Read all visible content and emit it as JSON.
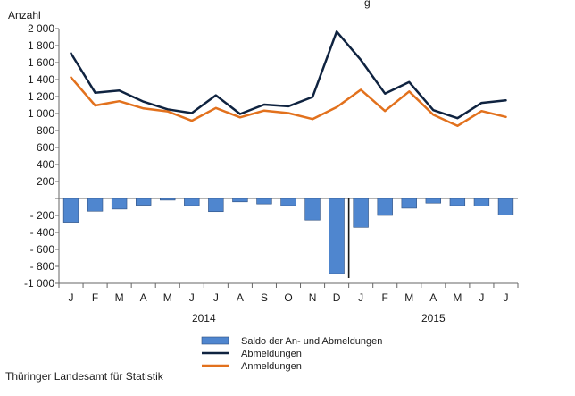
{
  "chart_data": {
    "type": "bar",
    "ylabel": "Anzahl",
    "top_text_fragment": "g",
    "ylim": [
      -1000,
      2000
    ],
    "yticks": [
      -1000,
      -800,
      -600,
      -400,
      -200,
      0,
      200,
      400,
      600,
      800,
      1000,
      1200,
      1400,
      1600,
      1800,
      2000
    ],
    "ytick_labels": [
      "-1 000",
      "- 800",
      "- 600",
      "- 400",
      "- 200",
      "",
      "200",
      "400",
      "600",
      "800",
      "1 000",
      "1 200",
      "1 400",
      "1 600",
      "1 800",
      "2 000"
    ],
    "categories": [
      "J",
      "F",
      "M",
      "A",
      "M",
      "J",
      "J",
      "A",
      "S",
      "O",
      "N",
      "D",
      "J",
      "F",
      "M",
      "A",
      "M",
      "J",
      "J"
    ],
    "year_labels": [
      {
        "label": "2014",
        "first_index": 0,
        "last_index": 11
      },
      {
        "label": "2015",
        "first_index": 12,
        "last_index": 18
      }
    ],
    "series": [
      {
        "name": "Saldo der An- und Abmeldungen",
        "type": "bar",
        "color": "#4f86cf",
        "values": [
          -280,
          -150,
          -125,
          -80,
          -20,
          -85,
          -155,
          -40,
          -65,
          -85,
          -255,
          -885,
          -340,
          -200,
          -115,
          -55,
          -85,
          -90,
          -195
        ]
      },
      {
        "name": "Abmeldungen",
        "type": "line",
        "color": "#0f2340",
        "values": [
          1710,
          1245,
          1270,
          1140,
          1050,
          1005,
          1215,
          995,
          1105,
          1085,
          1195,
          1965,
          1630,
          1235,
          1370,
          1040,
          945,
          1125,
          1155
        ]
      },
      {
        "name": "Anmeldungen",
        "type": "line",
        "color": "#e2711d",
        "values": [
          1425,
          1095,
          1145,
          1060,
          1025,
          915,
          1065,
          955,
          1035,
          1005,
          935,
          1075,
          1280,
          1030,
          1260,
          985,
          855,
          1030,
          960
        ]
      }
    ],
    "year_divider_after_index": 11,
    "grid": false,
    "legend_position": "bottom"
  },
  "footer": {
    "source": "Thüringer Landesamt für Statistik"
  }
}
